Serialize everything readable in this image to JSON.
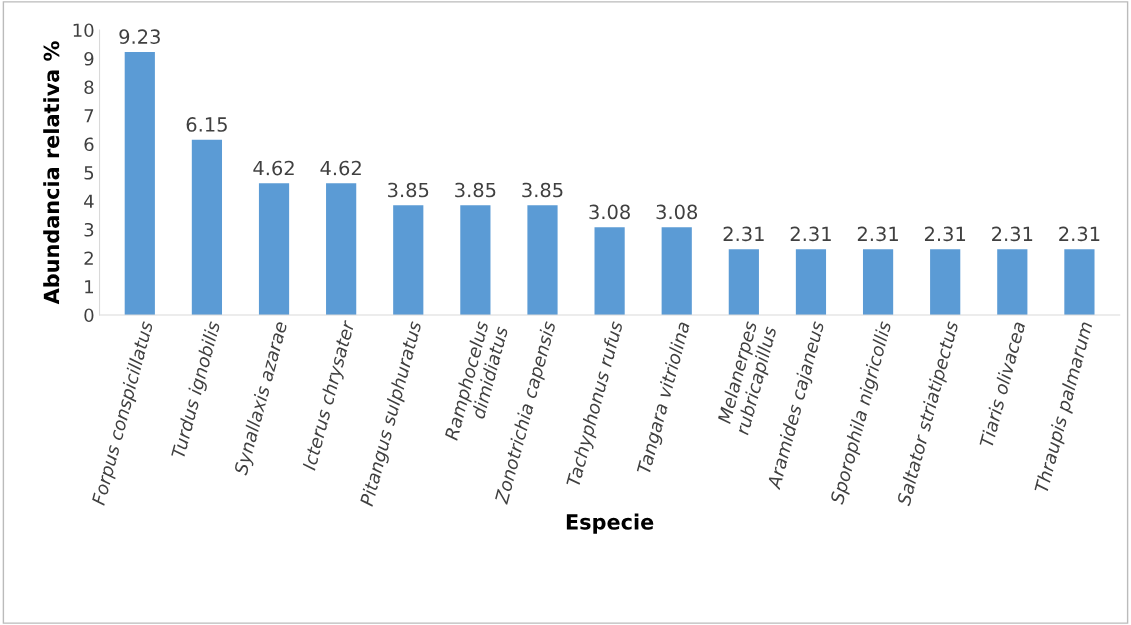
{
  "chart_data": {
    "type": "bar",
    "xlabel": "Especie",
    "ylabel": "Abundancia relativa %",
    "categories": [
      "Forpus conspicillatus",
      "Turdus ignobilis",
      "Synallaxis azarae",
      "Icterus chrysater",
      "Pitangus sulphuratus",
      "Ramphocelus\ndimidiatus",
      "Zonotrichia capensis",
      "Tachyphonus rufus",
      "Tangara vitriolina",
      "Melanerpes\nrubricapillus",
      "Aramides cajaneus",
      "Sporophila nigricollis",
      "Saltator striatipectus",
      "Tiaris olivacea",
      "Thraupis palmarum"
    ],
    "values": [
      9.23,
      6.15,
      4.62,
      4.62,
      3.85,
      3.85,
      3.85,
      3.08,
      3.08,
      2.31,
      2.31,
      2.31,
      2.31,
      2.31,
      2.31
    ],
    "color": "#5b9bd5",
    "ylim": [
      0,
      10
    ],
    "yticks": [
      0,
      1,
      2,
      3,
      4,
      5,
      6,
      7,
      8,
      9,
      10
    ],
    "grid": false,
    "data_labels": true
  }
}
